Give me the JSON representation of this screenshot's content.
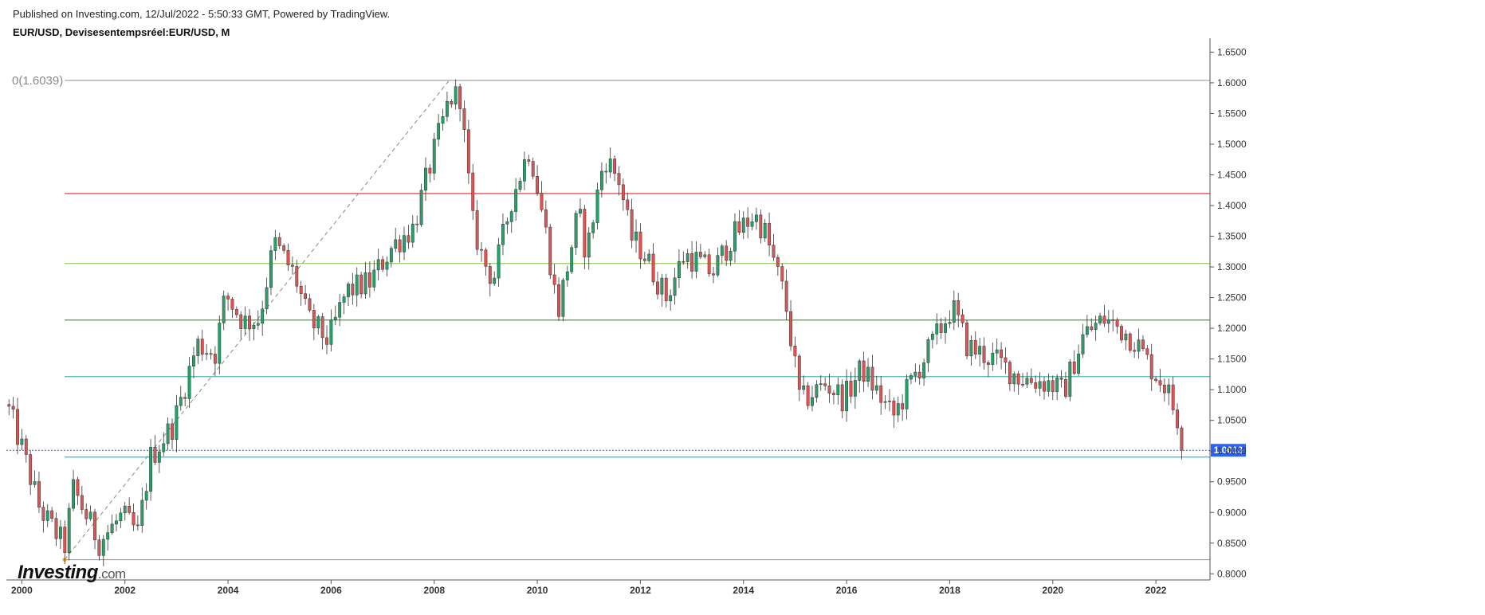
{
  "header": {
    "published": "Published on Investing.com, 12/Jul/2022 - 5:50:33 GMT, Powered by TradingView.",
    "symbol": "EUR/USD, Devisesentempsréel:EUR/USD, M"
  },
  "logo": {
    "brand": "Investing",
    "tld": ".com"
  },
  "colors": {
    "up": "#26a269",
    "down": "#e05353",
    "price_line": "#2962ff",
    "badge": "#2962ff"
  },
  "chart_data": {
    "type": "candlestick",
    "interval": "monthly",
    "ylim": [
      0.79,
      1.67
    ],
    "xlim": [
      1999.7,
      2023.05
    ],
    "y_ticks": [
      "0.8000",
      "0.8500",
      "0.9000",
      "0.9500",
      "1.0000",
      "1.0500",
      "1.1000",
      "1.1500",
      "1.2000",
      "1.2500",
      "1.3000",
      "1.3500",
      "1.4000",
      "1.4500",
      "1.5000",
      "1.5500",
      "1.6000",
      "1.6500"
    ],
    "x_ticks": [
      "2000",
      "2002",
      "2004",
      "2006",
      "2008",
      "2010",
      "2012",
      "2014",
      "2016",
      "2018",
      "2020",
      "2022"
    ],
    "last_price": "1.0013",
    "fibonacci": {
      "label": "0(1.6039)",
      "start": {
        "date": 2000.83,
        "price": 0.823
      },
      "end": {
        "date": 2008.29,
        "price": 1.6039
      },
      "levels": [
        {
          "price": 1.6039,
          "color": "#9e9e9e"
        },
        {
          "price": 1.4196,
          "color": "#d32f2f"
        },
        {
          "price": 1.3056,
          "color": "#9ccc65"
        },
        {
          "price": 1.2135,
          "color": "#43a047"
        },
        {
          "price": 1.1213,
          "color": "#4db6ac"
        },
        {
          "price": 0.9902,
          "color": "#29b6f6"
        },
        {
          "price": 0.823,
          "color": "#9e9e9e"
        }
      ]
    },
    "anchors": [
      [
        1999.75,
        1.066
      ],
      [
        2000.0,
        1.005
      ],
      [
        2000.35,
        0.905
      ],
      [
        2000.83,
        0.845
      ],
      [
        2001.0,
        0.938
      ],
      [
        2001.5,
        0.852
      ],
      [
        2001.95,
        0.895
      ],
      [
        2002.25,
        0.865
      ],
      [
        2002.5,
        0.99
      ],
      [
        2002.95,
        1.045
      ],
      [
        2003.4,
        1.175
      ],
      [
        2003.75,
        1.16
      ],
      [
        2003.95,
        1.255
      ],
      [
        2004.3,
        1.21
      ],
      [
        2004.6,
        1.215
      ],
      [
        2004.9,
        1.34
      ],
      [
        2005.3,
        1.285
      ],
      [
        2005.55,
        1.215
      ],
      [
        2005.95,
        1.18
      ],
      [
        2006.3,
        1.26
      ],
      [
        2006.75,
        1.275
      ],
      [
        2007.2,
        1.335
      ],
      [
        2007.6,
        1.365
      ],
      [
        2007.9,
        1.46
      ],
      [
        2008.3,
        1.575
      ],
      [
        2008.5,
        1.58
      ],
      [
        2008.75,
        1.37
      ],
      [
        2008.95,
        1.31
      ],
      [
        2009.15,
        1.28
      ],
      [
        2009.5,
        1.41
      ],
      [
        2009.85,
        1.495
      ],
      [
        2010.15,
        1.365
      ],
      [
        2010.4,
        1.225
      ],
      [
        2010.8,
        1.39
      ],
      [
        2010.95,
        1.32
      ],
      [
        2011.3,
        1.48
      ],
      [
        2011.6,
        1.44
      ],
      [
        2011.8,
        1.35
      ],
      [
        2012.05,
        1.325
      ],
      [
        2012.5,
        1.25
      ],
      [
        2012.85,
        1.32
      ],
      [
        2013.1,
        1.31
      ],
      [
        2013.4,
        1.29
      ],
      [
        2013.75,
        1.345
      ],
      [
        2014.2,
        1.385
      ],
      [
        2014.4,
        1.36
      ],
      [
        2014.8,
        1.25
      ],
      [
        2015.1,
        1.08
      ],
      [
        2015.6,
        1.11
      ],
      [
        2015.95,
        1.085
      ],
      [
        2016.3,
        1.135
      ],
      [
        2016.9,
        1.055
      ],
      [
        2017.3,
        1.12
      ],
      [
        2017.7,
        1.18
      ],
      [
        2018.05,
        1.235
      ],
      [
        2018.35,
        1.17
      ],
      [
        2018.95,
        1.145
      ],
      [
        2019.35,
        1.12
      ],
      [
        2019.95,
        1.11
      ],
      [
        2020.2,
        1.095
      ],
      [
        2020.6,
        1.19
      ],
      [
        2021.0,
        1.215
      ],
      [
        2021.3,
        1.2
      ],
      [
        2021.6,
        1.18
      ],
      [
        2021.95,
        1.13
      ],
      [
        2022.2,
        1.105
      ],
      [
        2022.4,
        1.055
      ],
      [
        2022.5,
        1.048
      ],
      [
        2022.54,
        1.0013
      ]
    ]
  }
}
